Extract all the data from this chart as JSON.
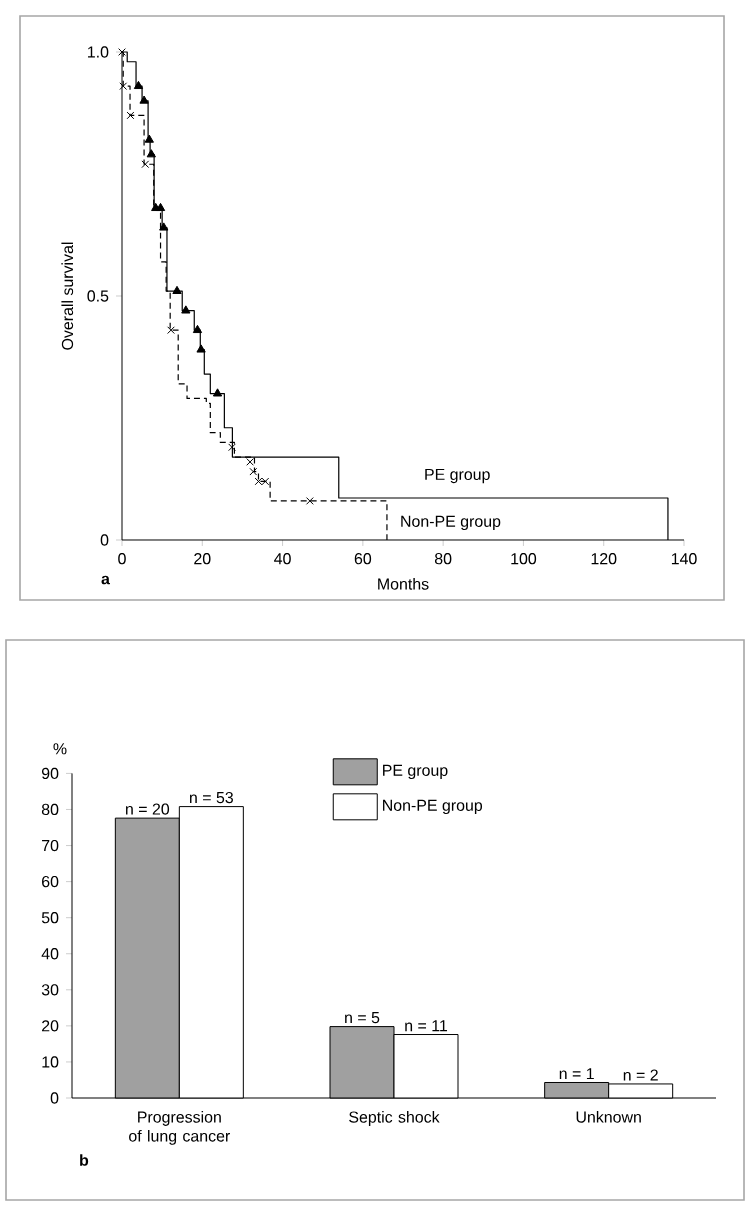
{
  "chart_data": [
    {
      "type": "step",
      "xlabel": "Months",
      "ylabel": "Overall survival",
      "annotations": [
        "a"
      ],
      "xlim": [
        0,
        140
      ],
      "xticks": [
        0,
        20,
        40,
        60,
        80,
        100,
        120,
        140
      ],
      "ylim": [
        0,
        1
      ],
      "yticks": [
        0,
        0.5,
        {
          "value": 1,
          "label": "1.0"
        }
      ],
      "series": [
        {
          "name": "PE group",
          "color": "#000000",
          "line_style": "solid",
          "x": [
            0,
            1.3,
            3.5,
            5,
            6.5,
            7,
            8,
            10,
            11.2,
            15,
            18,
            19.5,
            20.5,
            22,
            25.5,
            27.5,
            54,
            136
          ],
          "values": [
            1.0,
            0.98,
            0.93,
            0.9,
            0.82,
            0.79,
            0.68,
            0.64,
            0.51,
            0.47,
            0.43,
            0.39,
            0.34,
            0.3,
            0.23,
            0.17,
            0.086,
            0
          ]
        },
        {
          "name": "Non-PE group",
          "color": "#000000",
          "line_style": "dashed",
          "x": [
            0,
            0.3,
            2,
            5.5,
            7.9,
            9.6,
            11,
            12,
            14,
            16.2,
            21,
            22,
            24.5,
            28,
            33,
            34,
            36.9,
            66
          ],
          "values": [
            1.0,
            0.93,
            0.87,
            0.77,
            0.68,
            0.57,
            0.51,
            0.43,
            0.32,
            0.29,
            0.28,
            0.22,
            0.2,
            0.17,
            0.14,
            0.12,
            0.08,
            0
          ]
        },
        {
          "type": "scatter",
          "marker": "triangle",
          "color": "#000000",
          "x": [
            4.1,
            5.5,
            6.8,
            7.3,
            8.4,
            9.6,
            10.4,
            13.7,
            15.9,
            18.8,
            19.7,
            23.8
          ],
          "values": [
            0.93,
            0.9,
            0.82,
            0.79,
            0.68,
            0.68,
            0.64,
            0.51,
            0.47,
            0.43,
            0.39,
            0.3
          ]
        },
        {
          "type": "scatter",
          "marker": "cross",
          "color": "#000000",
          "x": [
            0,
            0.3,
            2.1,
            5.8,
            12.2,
            27.4,
            31.9,
            32.7,
            34,
            35.7,
            46.8
          ],
          "values": [
            1.0,
            0.93,
            0.87,
            0.77,
            0.43,
            0.19,
            0.16,
            0.14,
            0.12,
            0.12,
            0.08
          ]
        }
      ]
    },
    {
      "type": "bar",
      "ylabel": "%",
      "annotations": [
        "b",
        {
          "text": "n = 20",
          "x": "Progression of lung cancer",
          "y": 77.6
        },
        {
          "text": "n = 53",
          "x": "Progression of lung cancer",
          "y": 80.8
        },
        {
          "text": "n = 5",
          "x": "Septic shock",
          "y": 19.8
        },
        {
          "text": "n = 11",
          "x": "Septic shock",
          "y": 17.6
        },
        {
          "text": "n = 1",
          "x": "Unknown",
          "y": 4.3
        },
        {
          "text": "n = 2",
          "x": "Unknown",
          "y": 3.9
        }
      ],
      "categories": [
        "Progression of lung cancer",
        "Septic shock",
        "Unknown"
      ],
      "ylim": [
        0,
        90
      ],
      "yticks": [
        0,
        10,
        20,
        30,
        40,
        50,
        60,
        70,
        80,
        90
      ],
      "legend": "top",
      "series": [
        {
          "name": "PE group",
          "color": "#a0a0a0",
          "values": [
            77.6,
            19.8,
            4.3
          ]
        },
        {
          "name": "Non-PE group",
          "color": "#ffffff",
          "values": [
            80.8,
            17.6,
            3.9
          ]
        }
      ]
    }
  ]
}
